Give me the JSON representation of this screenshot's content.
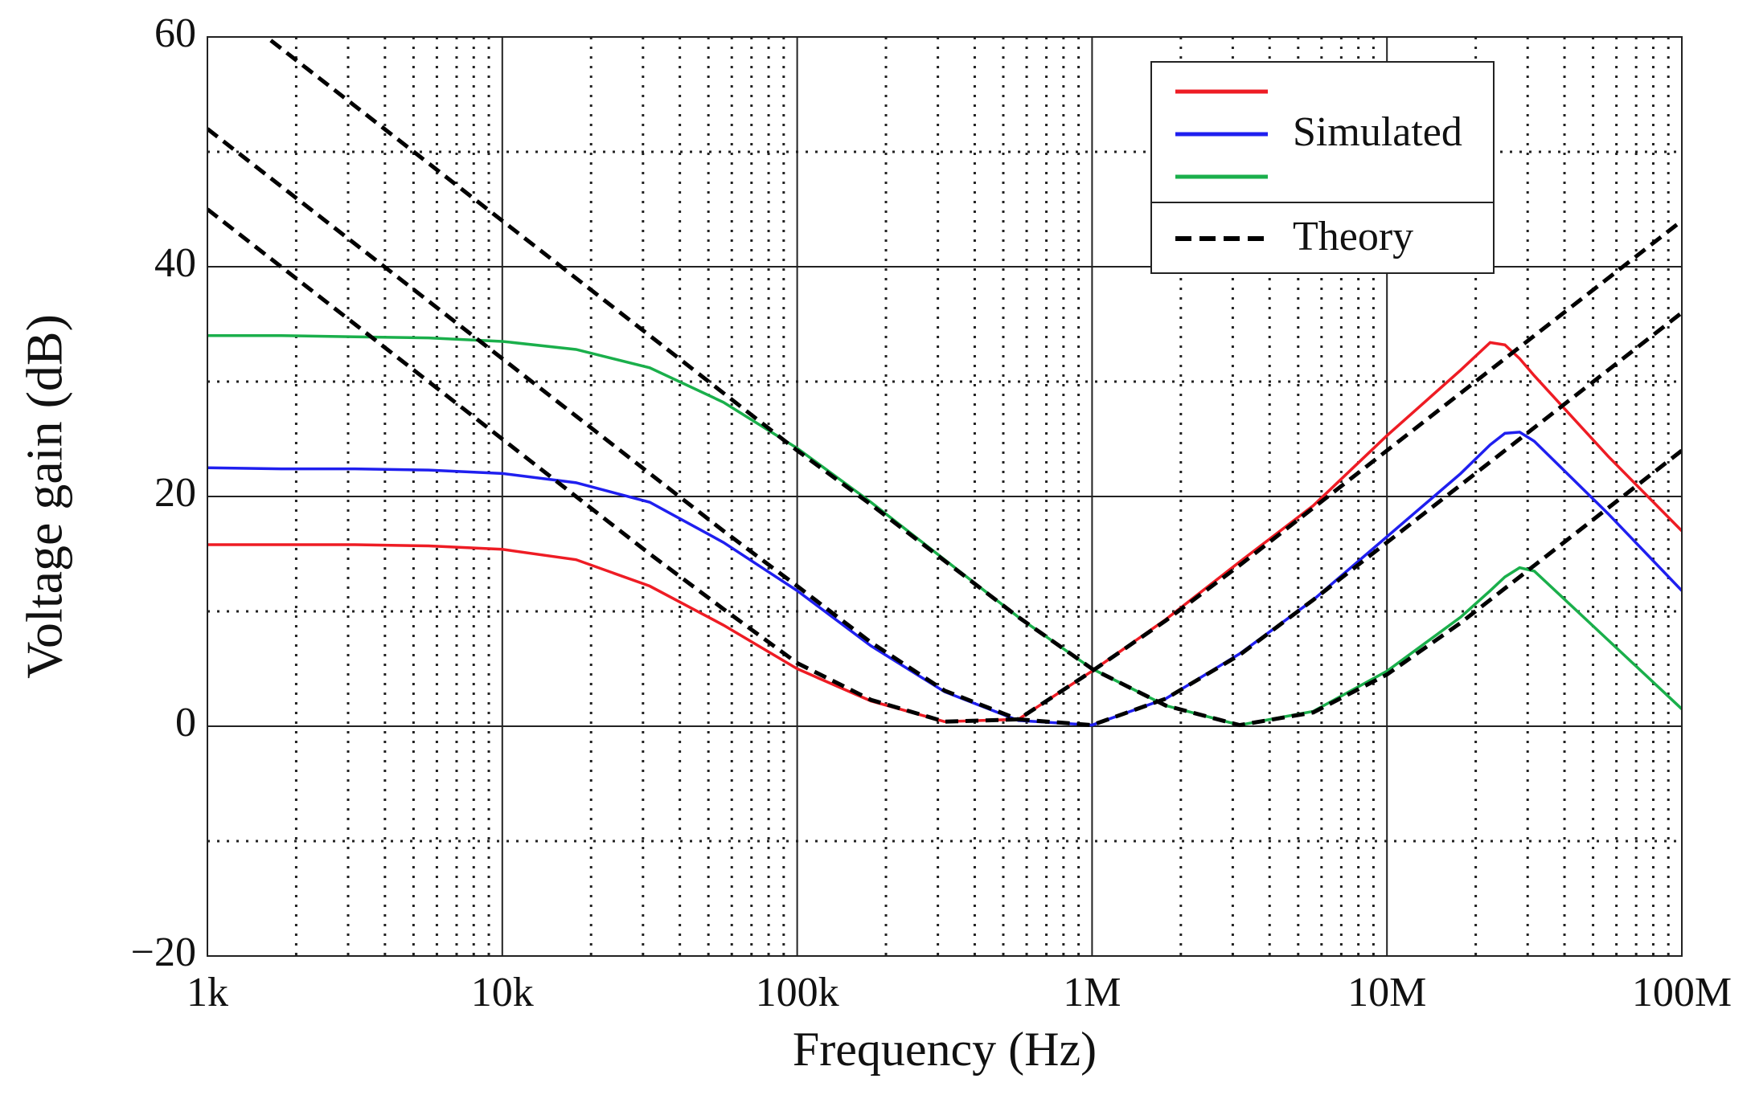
{
  "chart_data": {
    "type": "line",
    "x_label": "Frequency (Hz)",
    "y_label": "Voltage gain (dB)",
    "log_x": true,
    "grid": true,
    "xlim": [
      1000,
      100000000
    ],
    "ylim": [
      -20,
      60
    ],
    "xticks": [
      {
        "value": 1000,
        "label": "1k"
      },
      {
        "value": 10000,
        "label": "10k"
      },
      {
        "value": 100000,
        "label": "100k"
      },
      {
        "value": 1000000,
        "label": "1M"
      },
      {
        "value": 10000000,
        "label": "10M"
      },
      {
        "value": 100000000,
        "label": "100M"
      }
    ],
    "yticks": [
      {
        "value": -20,
        "label": "−20"
      },
      0,
      20,
      40,
      60
    ],
    "y_minor_grid": [
      -10,
      10,
      30,
      50
    ],
    "x": [
      1000,
      1778,
      3162,
      5623,
      10000,
      17783,
      31623,
      56234,
      100000,
      177828,
      316228,
      562341,
      1000000,
      1778279,
      3162278,
      5623413,
      10000000,
      17782794,
      22387211,
      25118864,
      28183829,
      31622777,
      56234133,
      100000000
    ],
    "series": [
      {
        "color": "#ee1c24",
        "style": "solid",
        "values": [
          15.8,
          15.8,
          15.8,
          15.7,
          15.4,
          14.5,
          12.2,
          8.8,
          5.0,
          2.2,
          0.4,
          0.6,
          4.8,
          9.3,
          14.3,
          19.2,
          25.3,
          31.0,
          33.4,
          33.2,
          32.0,
          30.5,
          23.5,
          17.0
        ]
      },
      {
        "color": "#1f1fef",
        "style": "solid",
        "values": [
          22.5,
          22.4,
          22.4,
          22.3,
          22.0,
          21.2,
          19.5,
          16.0,
          11.8,
          7.0,
          3.0,
          0.5,
          0.1,
          2.4,
          6.3,
          11.0,
          16.5,
          22.0,
          24.5,
          25.5,
          25.6,
          24.8,
          18.5,
          11.8
        ]
      },
      {
        "color": "#1aaf4b",
        "style": "solid",
        "values": [
          34,
          34,
          33.9,
          33.8,
          33.5,
          32.8,
          31.2,
          28.2,
          24.2,
          19.5,
          14.5,
          9.5,
          5.0,
          1.8,
          0.1,
          1.3,
          4.8,
          9.5,
          11.8,
          13.0,
          13.8,
          13.5,
          7.5,
          1.5
        ]
      },
      {
        "color": "#000000",
        "style": "dashed",
        "values": [
          45,
          40,
          35,
          30,
          25,
          20,
          15,
          10.2,
          5.5,
          2.3,
          0.4,
          0.6,
          4.8,
          9.2,
          14,
          19,
          24,
          29,
          31,
          32,
          33,
          34,
          39,
          44
        ]
      },
      {
        "color": "#000000",
        "style": "dashed",
        "values": [
          52,
          47,
          42,
          37,
          32,
          27,
          22,
          17,
          12.2,
          7.3,
          3.1,
          0.6,
          0.1,
          2.4,
          6.2,
          11,
          16,
          21,
          23,
          24,
          25,
          26,
          31,
          36
        ]
      },
      {
        "color": "#000000",
        "style": "dashed",
        "values": [
          64,
          59,
          54,
          49,
          44,
          39,
          34,
          29,
          24,
          19.3,
          14.4,
          9.5,
          5.0,
          1.8,
          0.1,
          1.2,
          4.5,
          9,
          11,
          12,
          13,
          14,
          19,
          24
        ]
      }
    ],
    "legend": {
      "simulated_label": "Simulated",
      "theory_label": "Theory"
    }
  }
}
